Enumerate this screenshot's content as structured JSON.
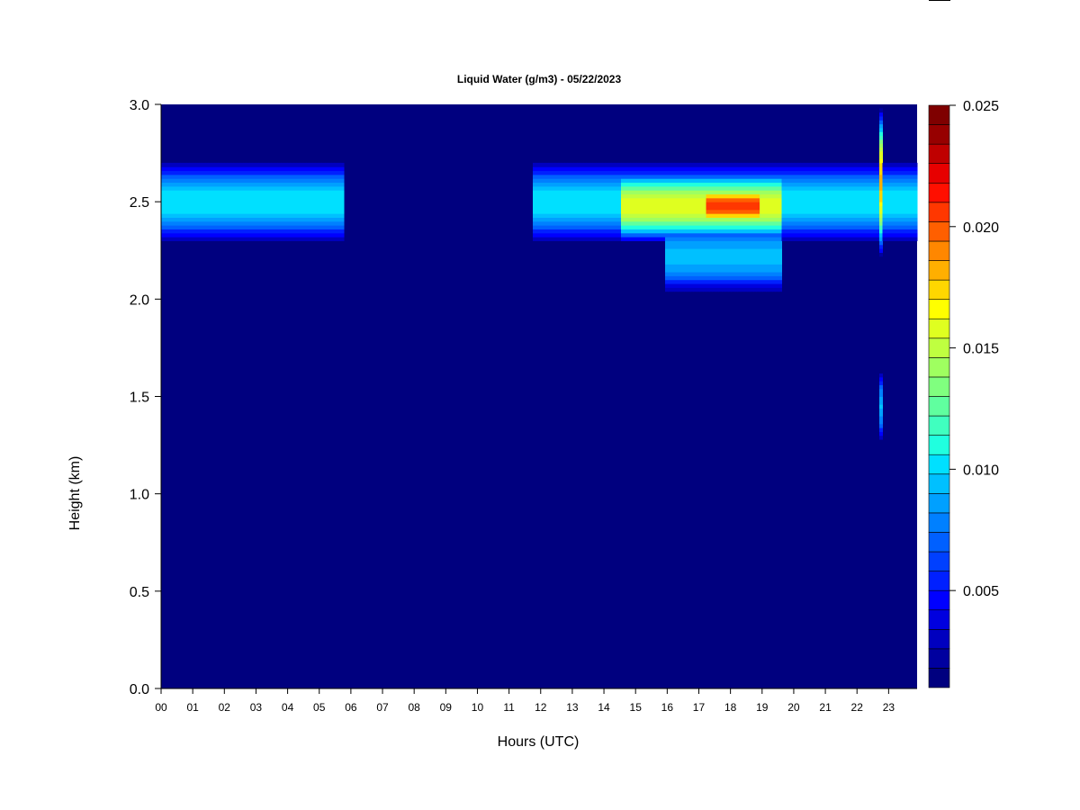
{
  "chart_data": {
    "type": "heatmap",
    "title": "Liquid Water (g/m3) - 05/22/2023",
    "xlabel": "Hours (UTC)",
    "ylabel": "Height (km)",
    "x_ticks": [
      "00",
      "01",
      "02",
      "03",
      "04",
      "05",
      "06",
      "07",
      "08",
      "09",
      "10",
      "11",
      "12",
      "13",
      "14",
      "15",
      "16",
      "17",
      "18",
      "19",
      "20",
      "21",
      "22",
      "23"
    ],
    "xlim": [
      0,
      23.9
    ],
    "y_ticks": [
      "0.0",
      "0.5",
      "1.0",
      "1.5",
      "2.0",
      "2.5",
      "3.0"
    ],
    "ylim": [
      0.0,
      3.0
    ],
    "colorbar": {
      "ticks": [
        "0.005",
        "0.010",
        "0.015",
        "0.020",
        "0.025"
      ],
      "range": [
        0.001,
        0.025
      ],
      "levels": 24,
      "colors": [
        "#00007f",
        "#00009f",
        "#0000bf",
        "#0000df",
        "#0000ff",
        "#0020ff",
        "#0040ff",
        "#0060ff",
        "#0080ff",
        "#00a0ff",
        "#00c0ff",
        "#00e0ff",
        "#20ffdf",
        "#40ffbf",
        "#60ff9f",
        "#80ff7f",
        "#9fff60",
        "#bfff40",
        "#dfff20",
        "#ffff00",
        "#ffd700",
        "#ffaf00",
        "#ff8700",
        "#ff5f00",
        "#ff3700",
        "#ff0f00",
        "#e70000",
        "#bf0000",
        "#970000",
        "#7f0000"
      ]
    },
    "background_value": 0.0,
    "features": [
      {
        "t_start": 0.0,
        "t_end": 5.8,
        "height": 2.5,
        "thickness": 0.22,
        "peak_value": 0.0105
      },
      {
        "t_start": 11.8,
        "t_end": 23.9,
        "height": 2.5,
        "thickness": 0.22,
        "peak_value": 0.0105
      },
      {
        "t_start": 14.5,
        "t_end": 19.6,
        "height": 2.48,
        "thickness": 0.2,
        "peak_value": 0.016
      },
      {
        "t_start": 17.2,
        "t_end": 18.9,
        "height": 2.48,
        "thickness": 0.12,
        "peak_value": 0.021
      },
      {
        "t_start": 15.9,
        "t_end": 19.6,
        "height": 2.22,
        "thickness": 0.2,
        "peak_value": 0.0095
      },
      {
        "t_start": 22.75,
        "t_end": 22.85,
        "height": 2.6,
        "thickness": 0.4,
        "peak_value": 0.018
      },
      {
        "t_start": 22.73,
        "t_end": 22.83,
        "height": 1.45,
        "thickness": 0.2,
        "peak_value": 0.009
      }
    ]
  }
}
